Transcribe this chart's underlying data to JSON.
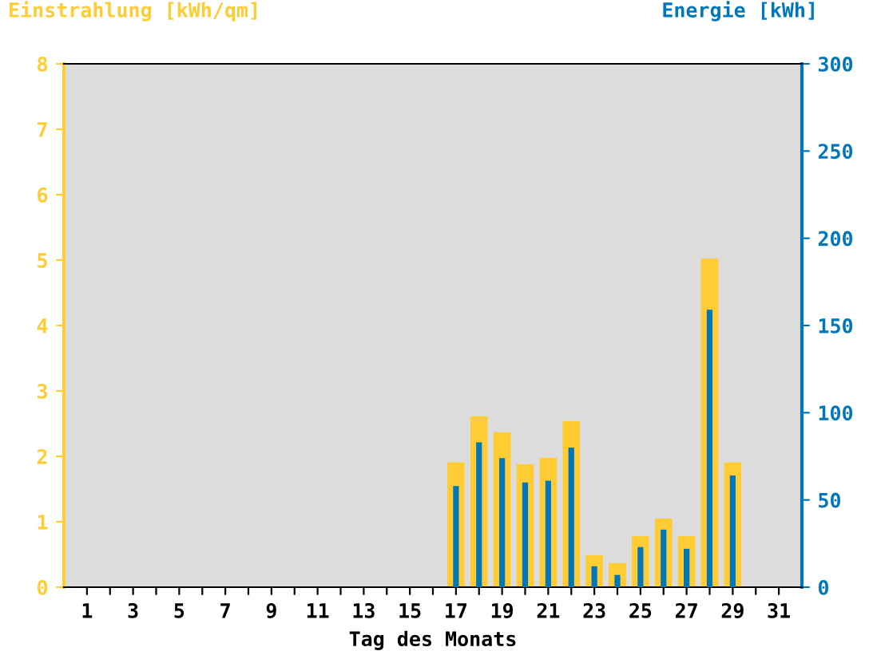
{
  "chart_data": {
    "type": "bar",
    "xlabel": "Tag des Monats",
    "ylabel": "Einstrahlung [kWh/qm]",
    "y2label": "Energie [kWh]",
    "categories": [
      "1",
      null,
      "3",
      null,
      "5",
      null,
      "7",
      null,
      "9",
      null,
      "11",
      null,
      "13",
      null,
      "15",
      null,
      "17",
      null,
      "19",
      null,
      "21",
      null,
      "23",
      null,
      "25",
      null,
      "27",
      null,
      "29",
      null,
      "31"
    ],
    "series": [
      {
        "color": "#ffcc33",
        "values": [
          null,
          null,
          null,
          null,
          null,
          null,
          null,
          null,
          null,
          null,
          null,
          null,
          null,
          null,
          null,
          null,
          1.91,
          2.61,
          2.37,
          1.88,
          1.98,
          2.54,
          0.49,
          0.37,
          0.78,
          1.05,
          0.78,
          5.02,
          1.91,
          null,
          null
        ]
      },
      {
        "color": "#0077bb",
        "axis": "y2",
        "values": [
          null,
          null,
          null,
          null,
          null,
          null,
          null,
          null,
          null,
          null,
          null,
          null,
          null,
          null,
          null,
          null,
          58,
          83,
          74,
          60,
          61,
          80,
          12,
          7,
          23,
          33,
          22,
          159,
          64,
          null,
          null
        ]
      }
    ],
    "ylim": [
      0,
      8
    ],
    "yticks": [
      0,
      1,
      2,
      3,
      4,
      5,
      6,
      7,
      8
    ],
    "y2lim": [
      0,
      300
    ],
    "y2ticks": [
      0,
      50,
      100,
      150,
      200,
      250,
      300
    ],
    "grid": false,
    "legend": false
  }
}
